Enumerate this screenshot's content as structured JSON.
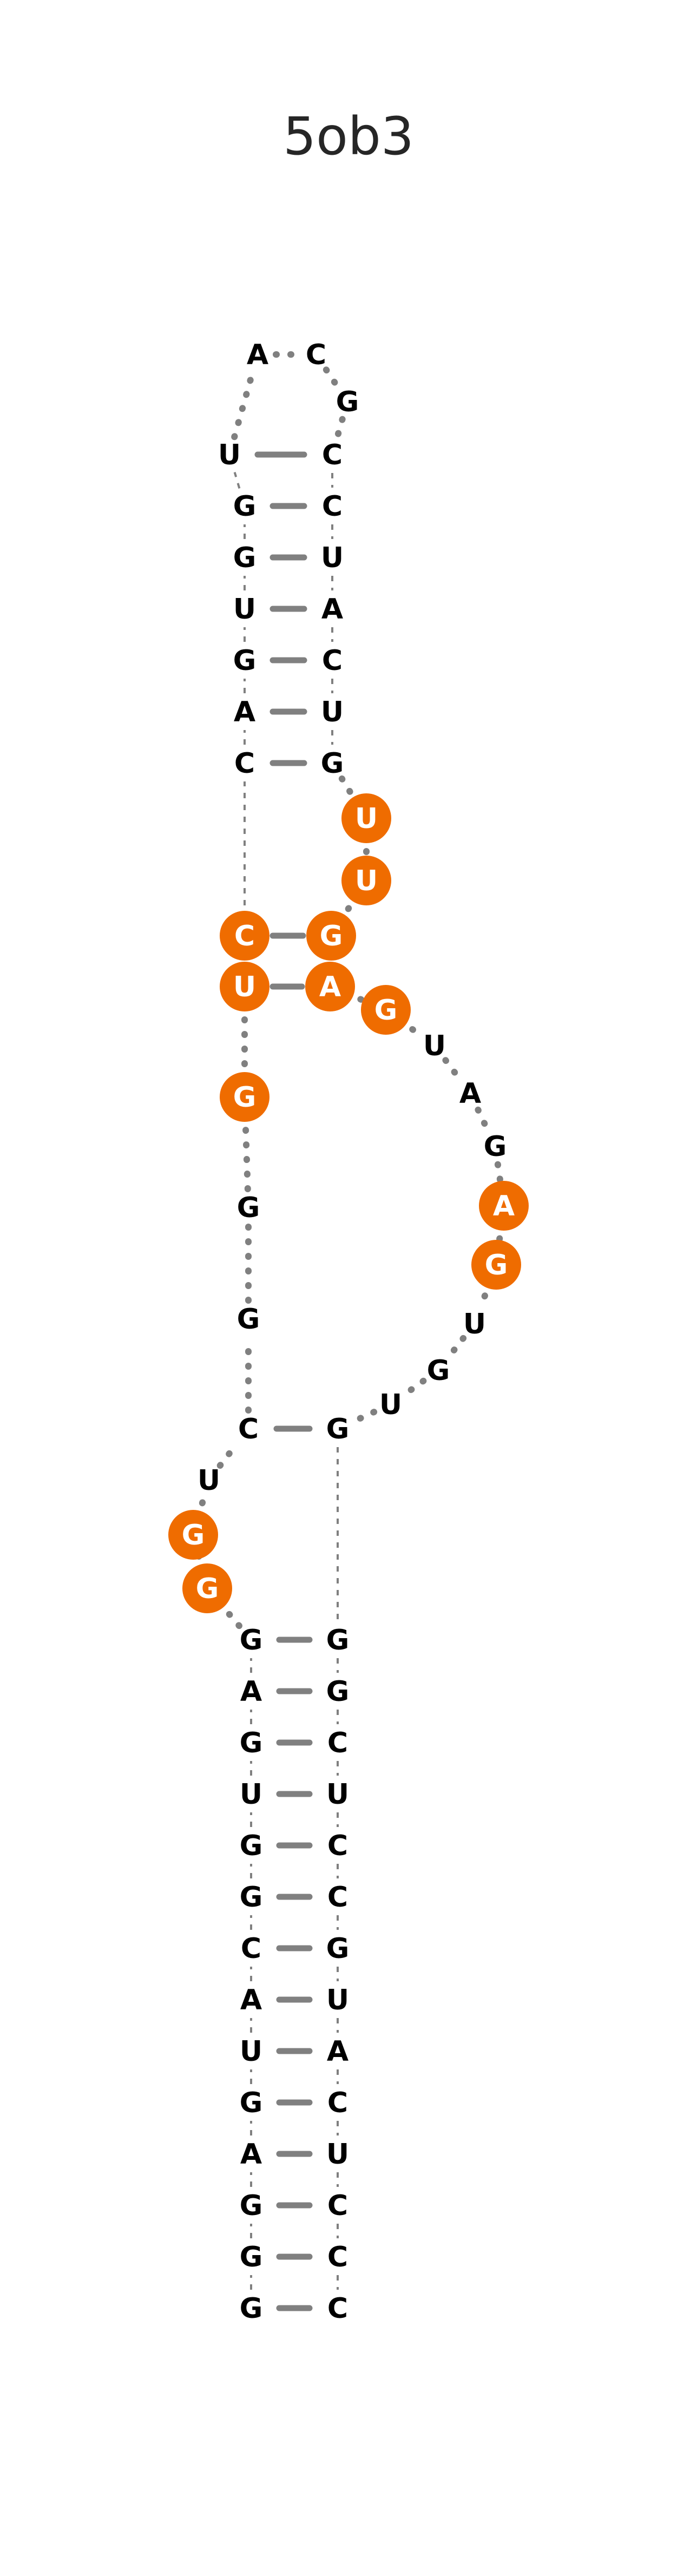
{
  "title": "5ob3",
  "colors": {
    "background": "#ffffff",
    "backbone": "#808080",
    "pair": "#808080",
    "highlight": "#ef6c00",
    "text_default": "#000000",
    "text_highlight": "#ffffff",
    "title": "#262626"
  },
  "nucleotides": [
    {
      "i": 0,
      "base": "G",
      "hl": false
    },
    {
      "i": 1,
      "base": "G",
      "hl": false
    },
    {
      "i": 2,
      "base": "G",
      "hl": false
    },
    {
      "i": 3,
      "base": "A",
      "hl": false
    },
    {
      "i": 4,
      "base": "G",
      "hl": false
    },
    {
      "i": 5,
      "base": "U",
      "hl": false
    },
    {
      "i": 6,
      "base": "A",
      "hl": false
    },
    {
      "i": 7,
      "base": "C",
      "hl": false
    },
    {
      "i": 8,
      "base": "G",
      "hl": false
    },
    {
      "i": 9,
      "base": "G",
      "hl": false
    },
    {
      "i": 10,
      "base": "U",
      "hl": false
    },
    {
      "i": 11,
      "base": "G",
      "hl": false
    },
    {
      "i": 12,
      "base": "A",
      "hl": false
    },
    {
      "i": 13,
      "base": "G",
      "hl": false
    },
    {
      "i": 14,
      "base": "G",
      "hl": true
    },
    {
      "i": 15,
      "base": "G",
      "hl": true
    },
    {
      "i": 16,
      "base": "U",
      "hl": false
    },
    {
      "i": 17,
      "base": "C",
      "hl": false
    },
    {
      "i": 18,
      "base": "G",
      "hl": false
    },
    {
      "i": 19,
      "base": "G",
      "hl": false
    },
    {
      "i": 20,
      "base": "G",
      "hl": true
    },
    {
      "i": 21,
      "base": "U",
      "hl": true
    },
    {
      "i": 22,
      "base": "C",
      "hl": true
    },
    {
      "i": 23,
      "base": "C",
      "hl": false
    },
    {
      "i": 24,
      "base": "A",
      "hl": false
    },
    {
      "i": 25,
      "base": "G",
      "hl": false
    },
    {
      "i": 26,
      "base": "U",
      "hl": false
    },
    {
      "i": 27,
      "base": "G",
      "hl": false
    },
    {
      "i": 28,
      "base": "G",
      "hl": false
    },
    {
      "i": 29,
      "base": "U",
      "hl": false
    },
    {
      "i": 30,
      "base": "A",
      "hl": false
    },
    {
      "i": 31,
      "base": "C",
      "hl": false
    },
    {
      "i": 32,
      "base": "G",
      "hl": false
    },
    {
      "i": 33,
      "base": "C",
      "hl": false
    },
    {
      "i": 34,
      "base": "C",
      "hl": false
    },
    {
      "i": 35,
      "base": "U",
      "hl": false
    },
    {
      "i": 36,
      "base": "A",
      "hl": false
    },
    {
      "i": 37,
      "base": "C",
      "hl": false
    },
    {
      "i": 38,
      "base": "U",
      "hl": false
    },
    {
      "i": 39,
      "base": "G",
      "hl": false
    },
    {
      "i": 40,
      "base": "U",
      "hl": true
    },
    {
      "i": 41,
      "base": "U",
      "hl": true
    },
    {
      "i": 42,
      "base": "G",
      "hl": true
    },
    {
      "i": 43,
      "base": "A",
      "hl": true
    },
    {
      "i": 44,
      "base": "G",
      "hl": true
    },
    {
      "i": 45,
      "base": "U",
      "hl": false
    },
    {
      "i": 46,
      "base": "A",
      "hl": false
    },
    {
      "i": 47,
      "base": "G",
      "hl": false
    },
    {
      "i": 48,
      "base": "A",
      "hl": true
    },
    {
      "i": 49,
      "base": "G",
      "hl": true
    },
    {
      "i": 50,
      "base": "U",
      "hl": false
    },
    {
      "i": 51,
      "base": "G",
      "hl": false
    },
    {
      "i": 52,
      "base": "U",
      "hl": false
    },
    {
      "i": 53,
      "base": "G",
      "hl": false
    },
    {
      "i": 54,
      "base": "G",
      "hl": false
    },
    {
      "i": 55,
      "base": "G",
      "hl": false
    },
    {
      "i": 56,
      "base": "C",
      "hl": false
    },
    {
      "i": 57,
      "base": "U",
      "hl": false
    },
    {
      "i": 58,
      "base": "C",
      "hl": false
    },
    {
      "i": 59,
      "base": "C",
      "hl": false
    },
    {
      "i": 60,
      "base": "G",
      "hl": false
    },
    {
      "i": 61,
      "base": "U",
      "hl": false
    },
    {
      "i": 62,
      "base": "A",
      "hl": false
    },
    {
      "i": 63,
      "base": "C",
      "hl": false
    },
    {
      "i": 64,
      "base": "U",
      "hl": false
    },
    {
      "i": 65,
      "base": "C",
      "hl": false
    },
    {
      "i": 66,
      "base": "C",
      "hl": false
    },
    {
      "i": 67,
      "base": "C",
      "hl": false
    }
  ],
  "base_pairs": [
    [
      0,
      67
    ],
    [
      1,
      66
    ],
    [
      2,
      65
    ],
    [
      3,
      64
    ],
    [
      4,
      63
    ],
    [
      5,
      62
    ],
    [
      6,
      61
    ],
    [
      7,
      60
    ],
    [
      8,
      59
    ],
    [
      9,
      58
    ],
    [
      10,
      57
    ],
    [
      11,
      56
    ],
    [
      12,
      55
    ],
    [
      13,
      54
    ],
    [
      17,
      53
    ],
    [
      21,
      43
    ],
    [
      22,
      42
    ],
    [
      23,
      39
    ],
    [
      24,
      38
    ],
    [
      25,
      37
    ],
    [
      26,
      36
    ],
    [
      27,
      35
    ],
    [
      28,
      34
    ],
    [
      29,
      33
    ]
  ]
}
